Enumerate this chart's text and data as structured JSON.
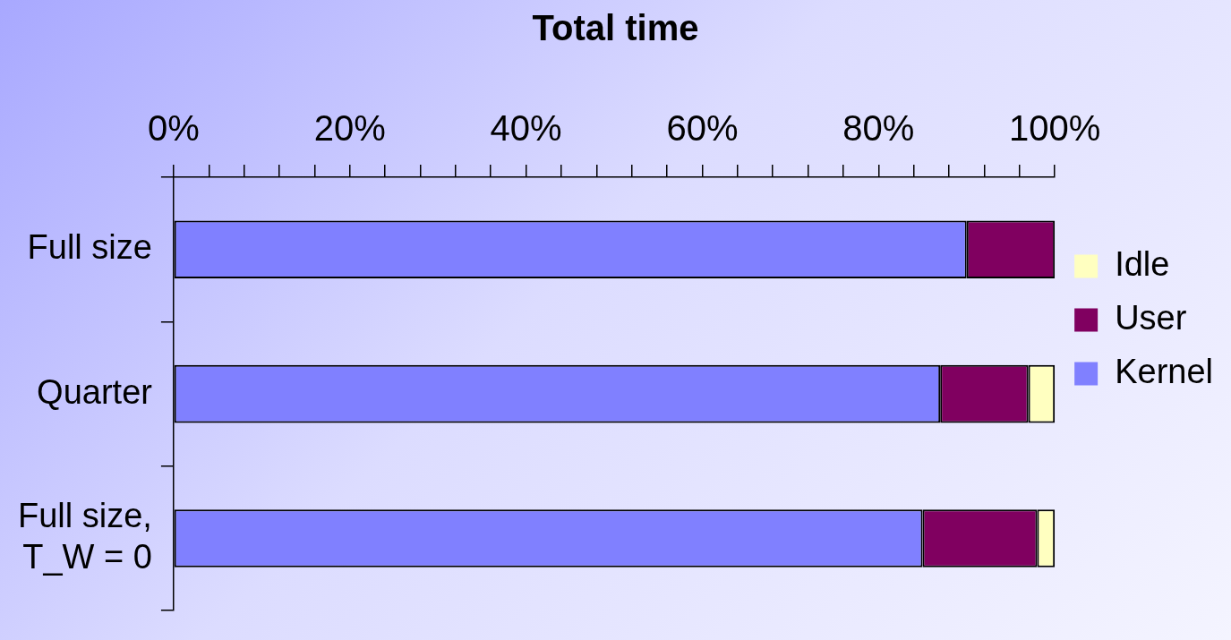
{
  "chart_data": {
    "type": "bar",
    "title": "Total time",
    "orientation": "horizontal",
    "stacked": true,
    "categories": [
      "Full size",
      "Quarter",
      "Full size, T_W = 0"
    ],
    "series": [
      {
        "name": "Kernel",
        "color": "#8080ff",
        "values": [
          90,
          87,
          85
        ]
      },
      {
        "name": "User",
        "color": "#800060",
        "values": [
          10,
          10,
          13
        ]
      },
      {
        "name": "Idle",
        "color": "#ffffc0",
        "values": [
          0,
          3,
          2
        ]
      }
    ],
    "xlim": [
      0,
      100
    ],
    "xticks": [
      {
        "value": 0,
        "label": "0%"
      },
      {
        "value": 4,
        "label": null
      },
      {
        "value": 8,
        "label": null
      },
      {
        "value": 12,
        "label": null
      },
      {
        "value": 16,
        "label": null
      },
      {
        "value": 20,
        "label": "20%"
      },
      {
        "value": 24,
        "label": null
      },
      {
        "value": 28,
        "label": null
      },
      {
        "value": 32,
        "label": null
      },
      {
        "value": 36,
        "label": null
      },
      {
        "value": 40,
        "label": "40%"
      },
      {
        "value": 44,
        "label": null
      },
      {
        "value": 48,
        "label": null
      },
      {
        "value": 52,
        "label": null
      },
      {
        "value": 56,
        "label": null
      },
      {
        "value": 60,
        "label": "60%"
      },
      {
        "value": 64,
        "label": null
      },
      {
        "value": 68,
        "label": null
      },
      {
        "value": 72,
        "label": null
      },
      {
        "value": 76,
        "label": null
      },
      {
        "value": 80,
        "label": "80%"
      },
      {
        "value": 84,
        "label": null
      },
      {
        "value": 88,
        "label": null
      },
      {
        "value": 92,
        "label": null
      },
      {
        "value": 96,
        "label": null
      },
      {
        "value": 100,
        "label": "100%"
      }
    ],
    "grid": false,
    "legend": "right"
  }
}
